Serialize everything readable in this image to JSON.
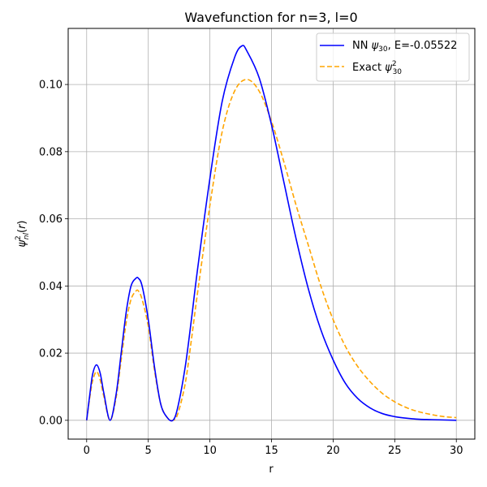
{
  "chart_data": {
    "type": "line",
    "title": "Wavefunction for n=3, l=0",
    "xlabel": "r",
    "ylabel": "ψ²nl(r)",
    "xlim": [
      -1.5,
      31.5
    ],
    "ylim": [
      -0.0056,
      0.1167
    ],
    "x_ticks": [
      0,
      5,
      10,
      15,
      20,
      25,
      30
    ],
    "y_ticks": [
      0.0,
      0.02,
      0.04,
      0.06,
      0.08,
      0.1
    ],
    "x_tick_labels": [
      "0",
      "5",
      "10",
      "15",
      "20",
      "25",
      "30"
    ],
    "y_tick_labels": [
      "0.00",
      "0.02",
      "0.04",
      "0.06",
      "0.08",
      "0.10"
    ],
    "grid": true,
    "legend_position": "top-right",
    "series": [
      {
        "name": "NN ψ30, E=-0.05522",
        "legend_main": "NN ",
        "legend_sub": "30",
        "legend_tail": ", E=-0.05522",
        "color": "#0000ff",
        "style": "solid",
        "x": [
          0,
          0.3,
          0.5,
          0.8,
          1.1,
          1.4,
          1.9,
          2.4,
          2.8,
          3.2,
          3.6,
          4.0,
          4.2,
          4.5,
          5.0,
          5.5,
          6.0,
          6.5,
          7.0,
          7.4,
          8.0,
          8.5,
          9.0,
          10.0,
          11.0,
          12.0,
          12.6,
          13.0,
          14.0,
          15.0,
          16.0,
          17.0,
          18.0,
          19.0,
          20.0,
          21.0,
          22.0,
          23.0,
          24.0,
          25.0,
          26.0,
          27.0,
          28.0,
          30.0
        ],
        "y": [
          0.0,
          0.009,
          0.014,
          0.0165,
          0.014,
          0.008,
          0.0,
          0.008,
          0.02,
          0.032,
          0.04,
          0.0423,
          0.0423,
          0.04,
          0.03,
          0.016,
          0.005,
          0.001,
          0.0,
          0.004,
          0.016,
          0.03,
          0.045,
          0.072,
          0.095,
          0.108,
          0.1115,
          0.11,
          0.102,
          0.088,
          0.071,
          0.054,
          0.039,
          0.027,
          0.018,
          0.011,
          0.0065,
          0.0037,
          0.002,
          0.0011,
          0.0006,
          0.0003,
          0.0002,
          0.0
        ]
      },
      {
        "name": "Exact ψ²30",
        "legend_main": "Exact ",
        "legend_sub": "30",
        "legend_sup": "2",
        "legend_tail": "",
        "color": "#ffa500",
        "style": "dashed",
        "x": [
          0,
          0.3,
          0.5,
          0.8,
          1.1,
          1.4,
          1.9,
          2.4,
          2.8,
          3.2,
          3.6,
          4.0,
          4.2,
          4.5,
          5.0,
          5.5,
          6.0,
          6.5,
          7.0,
          7.4,
          8.0,
          8.5,
          9.0,
          10.0,
          11.0,
          12.0,
          13.0,
          14.0,
          15.0,
          16.0,
          17.0,
          18.0,
          19.0,
          20.0,
          21.0,
          22.0,
          23.0,
          24.0,
          25.0,
          26.0,
          27.0,
          28.0,
          29.0,
          30.0
        ],
        "y": [
          0.0,
          0.008,
          0.012,
          0.0145,
          0.012,
          0.007,
          0.0,
          0.007,
          0.018,
          0.029,
          0.036,
          0.0385,
          0.0385,
          0.036,
          0.028,
          0.015,
          0.005,
          0.001,
          0.0,
          0.002,
          0.011,
          0.024,
          0.038,
          0.064,
          0.086,
          0.098,
          0.1015,
          0.098,
          0.089,
          0.077,
          0.064,
          0.052,
          0.04,
          0.03,
          0.022,
          0.016,
          0.0115,
          0.008,
          0.0055,
          0.0037,
          0.0025,
          0.0017,
          0.0011,
          0.0008
        ]
      }
    ]
  }
}
